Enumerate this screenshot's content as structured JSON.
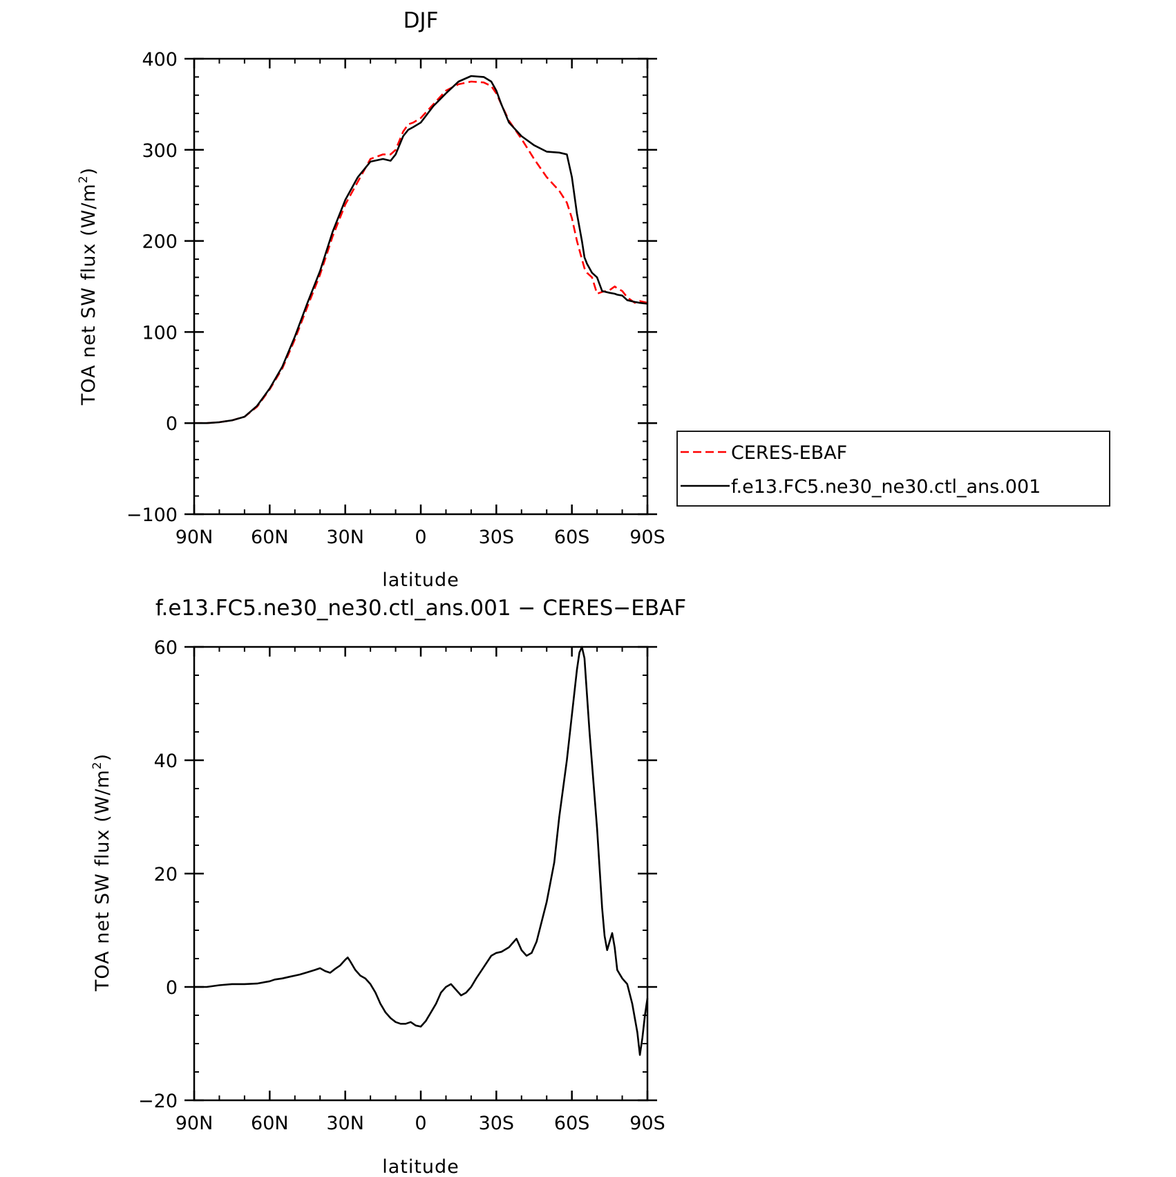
{
  "chart_data": [
    {
      "type": "line",
      "title": "DJF",
      "xlabel": "latitude",
      "ylabel": "TOA net SW flux (W/m",
      "ylabel_sup": "2",
      "ylabel_close": ")",
      "xlim": [
        90,
        -90
      ],
      "ylim": [
        -100,
        400
      ],
      "xticks": [
        {
          "value": 90,
          "label": "90N"
        },
        {
          "value": 60,
          "label": "60N"
        },
        {
          "value": 30,
          "label": "30N"
        },
        {
          "value": 0,
          "label": "0"
        },
        {
          "value": -30,
          "label": "30S"
        },
        {
          "value": -60,
          "label": "60S"
        },
        {
          "value": -90,
          "label": "90S"
        }
      ],
      "yticks": [
        -100,
        0,
        100,
        200,
        300,
        400
      ],
      "yticklabels": [
        "−100",
        "0",
        "100",
        "200",
        "300",
        "400"
      ],
      "x": [
        90,
        85,
        80,
        75,
        70,
        65,
        60,
        55,
        50,
        45,
        40,
        35,
        30,
        25,
        20,
        15,
        12,
        10,
        7,
        5,
        3,
        0,
        -5,
        -10,
        -15,
        -20,
        -25,
        -28,
        -30,
        -32,
        -35,
        -40,
        -45,
        -50,
        -55,
        -58,
        -60,
        -62,
        -64,
        -65,
        -66,
        -68,
        -70,
        -72,
        -75,
        -77,
        -78,
        -80,
        -82,
        -85,
        -87,
        -90
      ],
      "series": [
        {
          "name": "CERES-EBAF",
          "color": "#ff0000",
          "dash": "dashed",
          "values": [
            0,
            0,
            1,
            3,
            7,
            18,
            37,
            60,
            92,
            128,
            163,
            205,
            240,
            265,
            290,
            295,
            295,
            300,
            320,
            328,
            330,
            335,
            350,
            365,
            372,
            375,
            374,
            370,
            362,
            350,
            332,
            312,
            290,
            270,
            255,
            242,
            225,
            200,
            180,
            170,
            165,
            160,
            142,
            144,
            146,
            150,
            148,
            145,
            138,
            132,
            134,
            132
          ]
        },
        {
          "name": "f.e13.FC5.ne30_ne30.ctl_ans.001",
          "color": "#000000",
          "dash": "solid",
          "values": [
            0,
            0,
            1,
            3,
            7,
            19,
            38,
            62,
            95,
            132,
            167,
            210,
            245,
            270,
            287,
            290,
            288,
            295,
            315,
            322,
            325,
            330,
            348,
            362,
            375,
            381,
            380,
            375,
            365,
            350,
            330,
            315,
            305,
            298,
            297,
            295,
            270,
            230,
            200,
            182,
            175,
            165,
            160,
            145,
            143,
            142,
            141,
            140,
            135,
            133,
            132,
            131
          ]
        }
      ],
      "legend": {
        "position": "right",
        "entries": [
          "CERES-EBAF",
          "f.e13.FC5.ne30_ne30.ctl_ans.001"
        ]
      }
    },
    {
      "type": "line",
      "title": "f.e13.FC5.ne30_ne30.ctl_ans.001 − CERES−EBAF",
      "xlabel": "latitude",
      "ylabel": "TOA net SW flux (W/m",
      "ylabel_sup": "2",
      "ylabel_close": ")",
      "xlim": [
        90,
        -90
      ],
      "ylim": [
        -20,
        60
      ],
      "xticks": [
        {
          "value": 90,
          "label": "90N"
        },
        {
          "value": 60,
          "label": "60N"
        },
        {
          "value": 30,
          "label": "30N"
        },
        {
          "value": 0,
          "label": "0"
        },
        {
          "value": -30,
          "label": "30S"
        },
        {
          "value": -60,
          "label": "60S"
        },
        {
          "value": -90,
          "label": "90S"
        }
      ],
      "yticks": [
        -20,
        0,
        20,
        40,
        60
      ],
      "yticklabels": [
        "−20",
        "0",
        "20",
        "40",
        "60"
      ],
      "x": [
        90,
        85,
        80,
        75,
        70,
        65,
        60,
        58,
        55,
        52,
        50,
        48,
        45,
        42,
        40,
        38,
        36,
        34,
        32,
        30,
        29,
        28,
        26,
        24,
        22,
        20,
        18,
        16,
        14,
        12,
        10,
        8,
        6,
        4,
        2,
        0,
        -2,
        -4,
        -6,
        -8,
        -10,
        -12,
        -14,
        -16,
        -18,
        -20,
        -22,
        -25,
        -28,
        -30,
        -32,
        -35,
        -37,
        -38,
        -40,
        -42,
        -44,
        -46,
        -48,
        -50,
        -53,
        -55,
        -58,
        -60,
        -62,
        -63,
        -64,
        -65,
        -67,
        -70,
        -72,
        -73,
        -74,
        -75,
        -76,
        -77,
        -78,
        -80,
        -82,
        -84,
        -86,
        -87,
        -88,
        -89,
        -90
      ],
      "series": [
        {
          "name": "",
          "color": "#000000",
          "dash": "solid",
          "values": [
            0,
            0,
            0.3,
            0.5,
            0.5,
            0.6,
            1.0,
            1.3,
            1.5,
            1.8,
            2.0,
            2.2,
            2.6,
            3.0,
            3.3,
            2.8,
            2.5,
            3.2,
            3.8,
            4.8,
            5.2,
            4.5,
            3.0,
            2.0,
            1.5,
            0.5,
            -1.0,
            -3.0,
            -4.5,
            -5.5,
            -6.2,
            -6.5,
            -6.5,
            -6.2,
            -6.8,
            -7.0,
            -6.0,
            -4.5,
            -3.0,
            -1.0,
            0.0,
            0.5,
            -0.5,
            -1.5,
            -1.0,
            0.0,
            1.5,
            3.5,
            5.5,
            6.0,
            6.2,
            7.0,
            8.0,
            8.5,
            6.5,
            5.5,
            6.0,
            8.0,
            11.5,
            15.0,
            22.0,
            30.0,
            40.0,
            48.0,
            56.0,
            59.0,
            60.0,
            58.0,
            45.0,
            28.0,
            14.0,
            9.0,
            6.5,
            8.0,
            9.5,
            7.0,
            3.0,
            1.5,
            0.5,
            -3.0,
            -8.0,
            -12.0,
            -9.0,
            -5.0,
            -2.0
          ]
        }
      ]
    }
  ]
}
